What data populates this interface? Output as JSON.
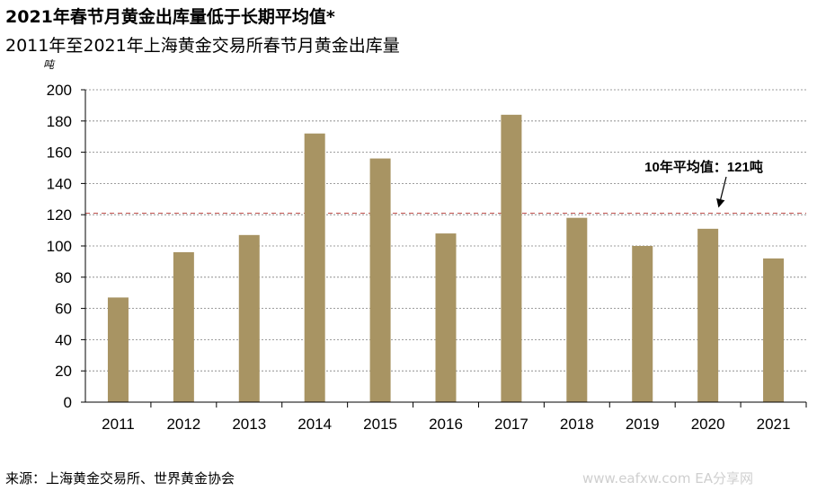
{
  "title": "2021年春节月黄金出库量低于长期平均值*",
  "subtitle": "2011年至2021年上海黄金交易所春节月黄金出库量",
  "source": "来源：上海黄金交易所、世界黄金协会",
  "watermark": "www.eafxw.com   EA分享网",
  "colors": {
    "bar": "#a89463",
    "average_line": "#c0504d",
    "grid": "#7f7f7f"
  },
  "chart_data": {
    "type": "bar",
    "ylabel": "吨",
    "ylim": [
      0,
      200
    ],
    "yticks": [
      0,
      20,
      40,
      60,
      80,
      100,
      120,
      140,
      160,
      180,
      200
    ],
    "grid": true,
    "categories": [
      "2011",
      "2012",
      "2013",
      "2014",
      "2015",
      "2016",
      "2017",
      "2018",
      "2019",
      "2020",
      "2021"
    ],
    "values": [
      67,
      96,
      107,
      172,
      156,
      108,
      184,
      118,
      100,
      111,
      92
    ],
    "average": {
      "value": 121,
      "label": "10年平均值：121吨"
    }
  }
}
